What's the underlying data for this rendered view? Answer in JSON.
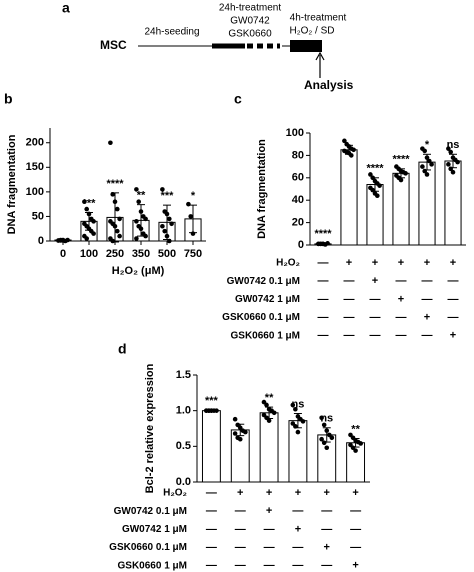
{
  "diagram": {
    "letter": "a",
    "cell": "MSC",
    "step1": "24h-seeding",
    "step2": [
      "24h-treatment",
      "GW0742",
      "GSK0660"
    ],
    "step3": [
      "4h-treatment",
      "H₂O₂ / SD"
    ],
    "end": "Analysis"
  },
  "chart_data": [
    {
      "type": "bar",
      "letter": "b",
      "ylabel": "DNA fragmentation",
      "xlabel": "H₂O₂ (μM)",
      "categories": [
        "0",
        "100",
        "250",
        "350",
        "500",
        "750"
      ],
      "values": [
        2,
        40,
        48,
        42,
        38,
        45
      ],
      "errors": [
        1,
        18,
        50,
        32,
        35,
        28
      ],
      "points": [
        [
          1,
          2,
          1,
          0,
          2,
          1,
          1,
          2
        ],
        [
          80,
          65,
          55,
          45,
          40,
          35,
          30,
          25,
          20,
          15,
          10,
          5
        ],
        [
          200,
          95,
          80,
          65,
          45,
          40,
          35,
          30,
          20,
          10,
          5,
          0
        ],
        [
          105,
          80,
          60,
          50,
          45,
          40,
          30,
          25,
          15,
          10,
          5
        ],
        [
          105,
          60,
          55,
          45,
          35,
          30,
          20,
          10,
          0
        ],
        [
          75,
          50,
          15
        ]
      ],
      "annotations": [
        null,
        "***",
        "****",
        "**",
        "***",
        "*"
      ],
      "ylim": [
        0,
        230
      ],
      "yticks": [
        0,
        50,
        100,
        150,
        200
      ]
    },
    {
      "type": "bar",
      "letter": "c",
      "ylabel": "DNA fragmentation",
      "values": [
        1,
        85,
        54,
        64,
        74,
        75
      ],
      "errors": [
        0.5,
        4,
        6,
        4,
        7,
        6
      ],
      "points": [
        [
          1,
          1,
          1,
          0.5,
          1.5,
          1,
          1,
          1
        ],
        [
          93,
          90,
          88,
          86,
          85,
          84,
          83,
          82,
          80
        ],
        [
          63,
          60,
          57,
          55,
          53,
          51,
          49,
          46,
          44
        ],
        [
          70,
          68,
          66,
          65,
          64,
          62,
          60,
          58
        ],
        [
          86,
          84,
          78,
          75,
          72,
          70,
          66,
          63
        ],
        [
          86,
          83,
          78,
          76,
          74,
          72,
          68,
          65
        ]
      ],
      "annotations": [
        "****",
        null,
        "****",
        "****",
        "*",
        "ns"
      ],
      "ylim": [
        0,
        100
      ],
      "yticks": [
        0,
        20,
        40,
        60,
        80,
        100
      ],
      "conditions": [
        {
          "label": "H₂O₂",
          "values": [
            "—",
            "+",
            "+",
            "+",
            "+",
            "+"
          ]
        },
        {
          "label": "GW0742  0.1 μM",
          "values": [
            "—",
            "—",
            "+",
            "—",
            "—",
            "—"
          ]
        },
        {
          "label": "GW0742  1 μM",
          "values": [
            "—",
            "—",
            "—",
            "+",
            "—",
            "—"
          ]
        },
        {
          "label": "GSK0660  0.1 μM",
          "values": [
            "—",
            "—",
            "—",
            "—",
            "+",
            "—"
          ]
        },
        {
          "label": "GSK0660  1 μM",
          "values": [
            "—",
            "—",
            "—",
            "—",
            "—",
            "+"
          ]
        }
      ]
    },
    {
      "type": "bar",
      "letter": "d",
      "ylabel": "Bcl-2 relative expression",
      "values": [
        1.0,
        0.73,
        0.97,
        0.86,
        0.66,
        0.55
      ],
      "errors": [
        0.01,
        0.08,
        0.08,
        0.1,
        0.1,
        0.06
      ],
      "points": [
        [
          1,
          1,
          1,
          1,
          1,
          1,
          1,
          1
        ],
        [
          0.88,
          0.8,
          0.76,
          0.72,
          0.7,
          0.68,
          0.62,
          0.6
        ],
        [
          1.12,
          1.08,
          1.02,
          1.0,
          0.97,
          0.94,
          0.9,
          0.86
        ],
        [
          1.08,
          1.02,
          0.92,
          0.88,
          0.85,
          0.82,
          0.78,
          0.7
        ],
        [
          0.9,
          0.8,
          0.72,
          0.66,
          0.62,
          0.6,
          0.55,
          0.48
        ],
        [
          0.66,
          0.62,
          0.58,
          0.56,
          0.54,
          0.52,
          0.48,
          0.44
        ]
      ],
      "annotations": [
        "***",
        null,
        "**",
        "ns",
        "ns",
        "**"
      ],
      "ylim": [
        0,
        1.5
      ],
      "yticks": [
        {
          "value": 0,
          "label": "0.0"
        },
        {
          "value": 0.5,
          "label": "0.5"
        },
        {
          "value": 1,
          "label": "1.0"
        },
        {
          "value": 1.5,
          "label": "1.5"
        }
      ],
      "conditions": [
        {
          "label": "H₂O₂",
          "values": [
            "—",
            "+",
            "+",
            "+",
            "+",
            "+"
          ]
        },
        {
          "label": "GW0742  0.1 μM",
          "values": [
            "—",
            "—",
            "+",
            "—",
            "—",
            "—"
          ]
        },
        {
          "label": "GW0742  1 μM",
          "values": [
            "—",
            "—",
            "—",
            "+",
            "—",
            "—"
          ]
        },
        {
          "label": "GSK0660  0.1 μM",
          "values": [
            "—",
            "—",
            "—",
            "—",
            "+",
            "—"
          ]
        },
        {
          "label": "GSK0660  1 μM",
          "values": [
            "—",
            "—",
            "—",
            "—",
            "—",
            "+"
          ]
        }
      ]
    }
  ]
}
